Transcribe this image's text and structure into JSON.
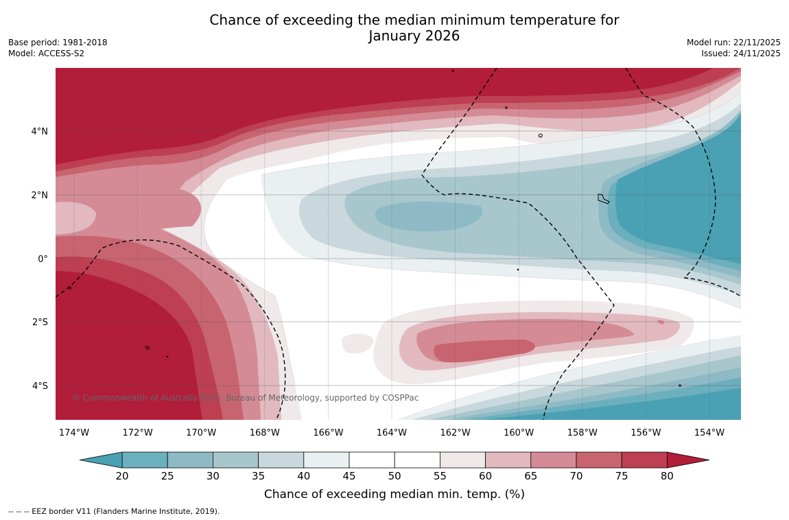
{
  "title": {
    "line1": "Chance of exceeding the median minimum temperature for",
    "line2": "January 2026"
  },
  "meta_left": {
    "base_period": "Base period: 1981-2018",
    "model": "Model: ACCESS-S2"
  },
  "meta_right": {
    "model_run": "Model run: 22/11/2025",
    "issued": "Issued: 24/11/2025"
  },
  "map": {
    "copyright": "© Commonwealth of Australia 2025, Bureau of Meteorology, supported by COSPPac",
    "lat_labels": [
      "4°N",
      "2°N",
      "0°",
      "2°S",
      "4°S"
    ],
    "lon_labels": [
      "174°W",
      "172°W",
      "170°W",
      "168°W",
      "166°W",
      "164°W",
      "162°W",
      "160°W",
      "158°W",
      "156°W",
      "154°W"
    ]
  },
  "colorbar": {
    "title": "Chance of exceeding median min. temp. (%)",
    "ticks": [
      "20",
      "25",
      "30",
      "35",
      "40",
      "45",
      "50",
      "55",
      "60",
      "65",
      "70",
      "75",
      "80"
    ],
    "colors": {
      "below_20": "#4aa1b3",
      "c20_25": "#6cafbd",
      "c25_30": "#8ebac6",
      "c30_35": "#a8c7cd",
      "c35_40": "#c9d8dc",
      "c40_45": "#eaf0f2",
      "c45_50": "#ffffff",
      "c50_55": "#ffffff",
      "c55_60": "#efe9ea",
      "c60_65": "#e1b9bf",
      "c65_70": "#d48b95",
      "c70_75": "#c8646f",
      "c75_80": "#bd3f51",
      "above_80": "#b21d3a"
    }
  },
  "legend_note": "--  --  -- EEZ border V11 (Flanders Marine Institute, 2019)."
}
